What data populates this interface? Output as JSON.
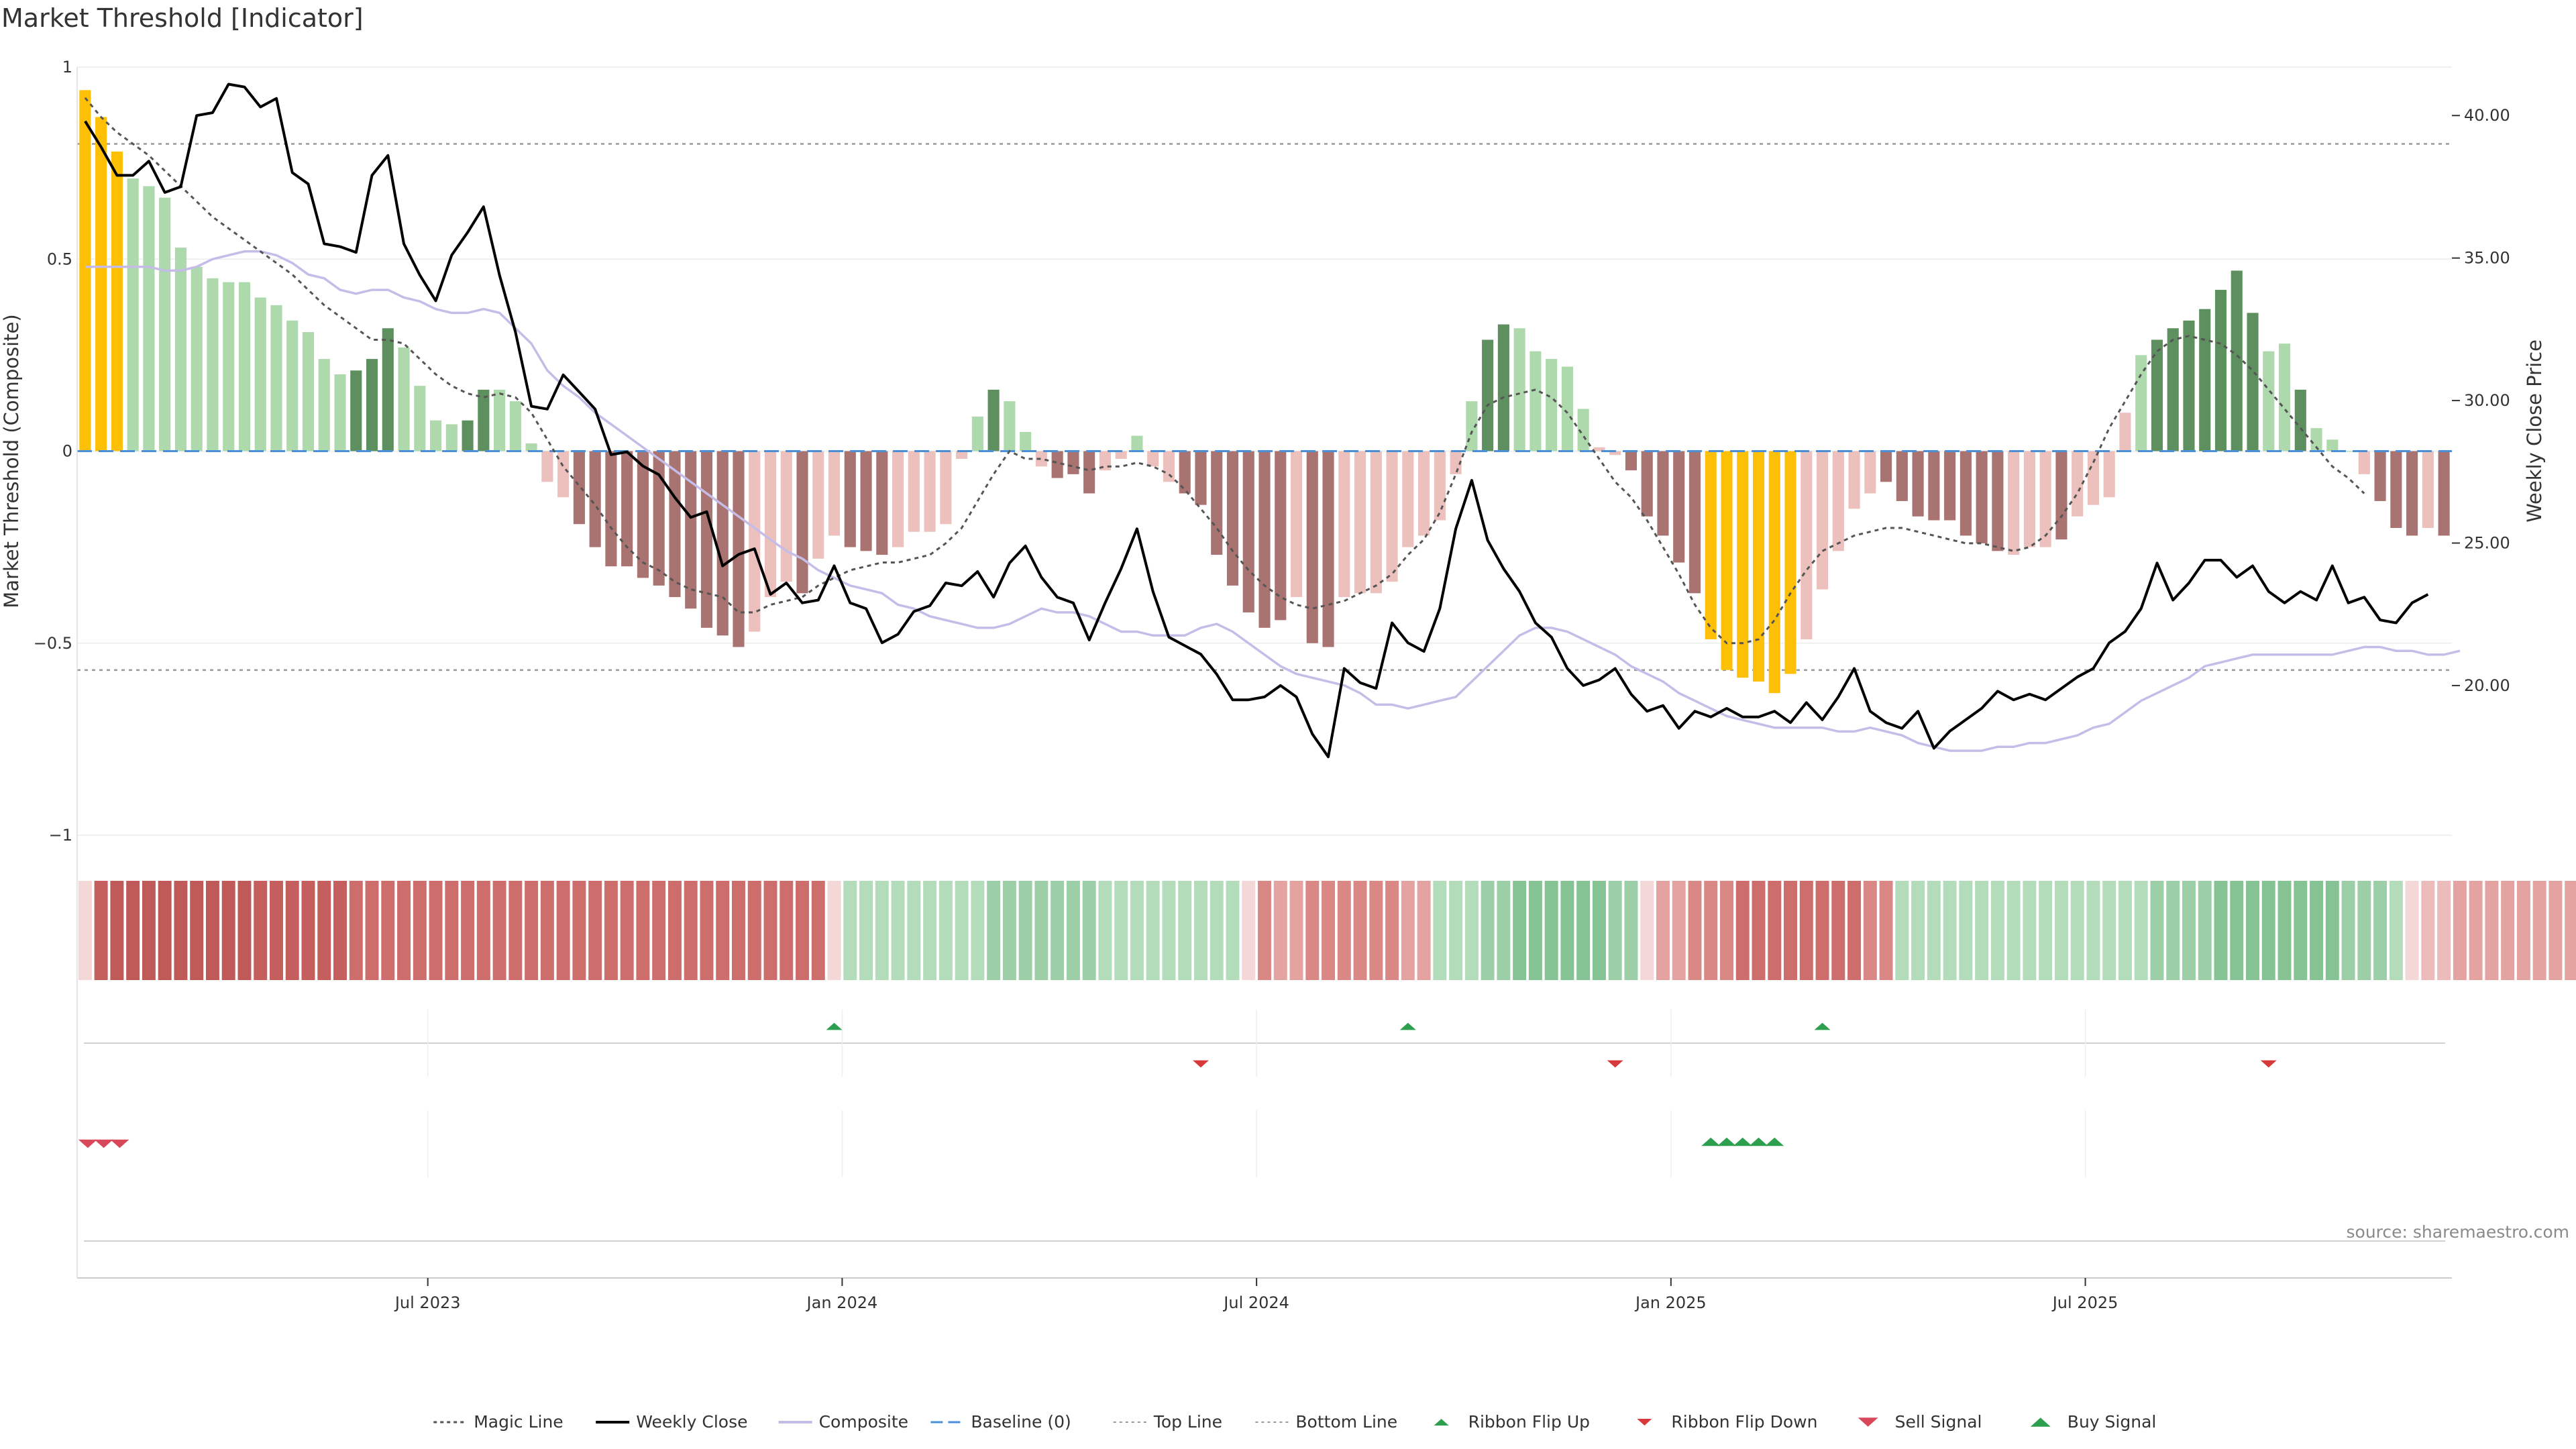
{
  "chart_data": {
    "type": "bar",
    "title": "Market Threshold [Indicator]",
    "ylabel": "Market Threshold (Composite)",
    "y2label": "Weekly Close Price",
    "source": "source: sharemaestro.com",
    "ylim": [
      -1,
      1
    ],
    "y2lim": [
      14.75,
      41.7
    ],
    "yticks": [
      1,
      0.5,
      0,
      -0.5,
      -1
    ],
    "ytick_labels": [
      "1",
      "0.5",
      "0",
      "−0.5",
      "−1"
    ],
    "y2ticks": [
      40,
      35,
      30,
      25,
      20
    ],
    "y2tick_labels": [
      "40.00",
      "35.00",
      "30.00",
      "25.00",
      "20.00"
    ],
    "x_ticks": [
      {
        "label": "Jul 2023",
        "index": 22
      },
      {
        "label": "Jan 2024",
        "index": 48
      },
      {
        "label": "Jul 2024",
        "index": 74
      },
      {
        "label": "Jan 2025",
        "index": 100
      },
      {
        "label": "Jul 2025",
        "index": 126
      }
    ],
    "top_line": 0.8,
    "bottom_line": -0.57,
    "colors": {
      "strong_positive": "#5e8f5e",
      "positive": "#add9ad",
      "strong_negative": "#a87370",
      "negative": "#ecc0bc",
      "extreme": "#fec006",
      "weekly_close": "#000000",
      "composite": "#c5bde8",
      "magic": "#555555",
      "baseline": "#4a90d9",
      "threshold_lines": "#999999",
      "ribbon_flip_up": "#2e9e4f",
      "ribbon_flip_down": "#d63a3a",
      "sell_signal": "#d9475a",
      "buy_signal": "#2e9e4f"
    },
    "bar_values": [
      0.94,
      0.87,
      0.78,
      0.71,
      0.69,
      0.66,
      0.53,
      0.48,
      0.45,
      0.44,
      0.44,
      0.4,
      0.38,
      0.34,
      0.31,
      0.24,
      0.2,
      0.21,
      0.24,
      0.32,
      0.27,
      0.17,
      0.08,
      0.07,
      0.08,
      0.16,
      0.16,
      0.13,
      0.02,
      -0.08,
      -0.12,
      -0.19,
      -0.25,
      -0.3,
      -0.3,
      -0.33,
      -0.35,
      -0.38,
      -0.41,
      -0.46,
      -0.48,
      -0.51,
      -0.47,
      -0.38,
      -0.34,
      -0.37,
      -0.28,
      -0.22,
      -0.25,
      -0.26,
      -0.27,
      -0.25,
      -0.21,
      -0.21,
      -0.19,
      -0.02,
      0.09,
      0.16,
      0.13,
      0.05,
      -0.04,
      -0.07,
      -0.06,
      -0.11,
      -0.05,
      -0.02,
      0.04,
      -0.04,
      -0.08,
      -0.11,
      -0.14,
      -0.27,
      -0.35,
      -0.42,
      -0.46,
      -0.44,
      -0.38,
      -0.5,
      -0.51,
      -0.38,
      -0.37,
      -0.37,
      -0.34,
      -0.25,
      -0.22,
      -0.18,
      -0.06,
      0.13,
      0.29,
      0.33,
      0.32,
      0.26,
      0.24,
      0.22,
      0.11,
      0.01,
      -0.01,
      -0.05,
      -0.17,
      -0.22,
      -0.29,
      -0.37,
      -0.49,
      -0.57,
      -0.59,
      -0.6,
      -0.63,
      -0.58,
      -0.49,
      -0.36,
      -0.26,
      -0.15,
      -0.11,
      -0.08,
      -0.13,
      -0.17,
      -0.18,
      -0.18,
      -0.22,
      -0.24,
      -0.26,
      -0.27,
      -0.25,
      -0.25,
      -0.23,
      -0.17,
      -0.14,
      -0.12,
      0.1,
      0.25,
      0.29,
      0.32,
      0.34,
      0.37,
      0.42,
      0.47,
      0.36,
      0.26,
      0.28,
      0.16,
      0.06,
      0.03,
      0.0,
      -0.06,
      -0.13,
      -0.2,
      -0.22,
      -0.2,
      -0.22
    ],
    "bar_colors": [
      "Y",
      "Y",
      "Y",
      "p",
      "p",
      "p",
      "p",
      "p",
      "p",
      "p",
      "p",
      "p",
      "p",
      "p",
      "p",
      "p",
      "p",
      "P",
      "P",
      "P",
      "p",
      "p",
      "p",
      "p",
      "P",
      "P",
      "p",
      "p",
      "p",
      "n",
      "n",
      "N",
      "N",
      "N",
      "N",
      "N",
      "N",
      "N",
      "N",
      "N",
      "N",
      "N",
      "n",
      "n",
      "n",
      "N",
      "n",
      "n",
      "N",
      "N",
      "N",
      "n",
      "n",
      "n",
      "n",
      "n",
      "p",
      "P",
      "p",
      "p",
      "n",
      "N",
      "N",
      "N",
      "n",
      "n",
      "p",
      "n",
      "n",
      "N",
      "N",
      "N",
      "N",
      "N",
      "N",
      "N",
      "n",
      "N",
      "N",
      "n",
      "n",
      "n",
      "n",
      "n",
      "n",
      "n",
      "n",
      "p",
      "P",
      "P",
      "p",
      "p",
      "p",
      "p",
      "p",
      "n",
      "n",
      "N",
      "N",
      "N",
      "N",
      "N",
      "Y",
      "Y",
      "Y",
      "Y",
      "Y",
      "Y",
      "n",
      "n",
      "n",
      "n",
      "n",
      "N",
      "N",
      "N",
      "N",
      "N",
      "N",
      "N",
      "N",
      "n",
      "n",
      "n",
      "N",
      "n",
      "n",
      "n",
      "n",
      "p",
      "P",
      "P",
      "P",
      "P",
      "P",
      "P",
      "P",
      "p",
      "p",
      "P",
      "p",
      "p",
      "p",
      "n",
      "N",
      "N",
      "N",
      "n",
      "N"
    ],
    "weekly_close": [
      39.8,
      38.9,
      37.9,
      37.9,
      38.4,
      37.3,
      37.5,
      40.0,
      40.1,
      41.1,
      41.0,
      40.3,
      40.6,
      38.0,
      37.6,
      35.5,
      35.4,
      35.2,
      37.9,
      38.6,
      35.5,
      34.4,
      33.5,
      35.1,
      35.9,
      36.8,
      34.4,
      32.4,
      29.8,
      29.7,
      30.9,
      30.3,
      29.7,
      28.1,
      28.2,
      27.7,
      27.4,
      26.6,
      25.9,
      26.1,
      24.2,
      24.6,
      24.8,
      23.2,
      23.6,
      22.9,
      23.0,
      24.2,
      22.9,
      22.7,
      21.5,
      21.8,
      22.6,
      22.8,
      23.6,
      23.5,
      24.0,
      23.1,
      24.3,
      24.9,
      23.8,
      23.1,
      22.9,
      21.6,
      22.9,
      24.1,
      25.5,
      23.3,
      21.7,
      21.4,
      21.1,
      20.4,
      19.5,
      19.5,
      19.6,
      20.0,
      19.6,
      18.3,
      17.5,
      20.6,
      20.1,
      19.9,
      22.2,
      21.5,
      21.2,
      22.7,
      25.5,
      27.2,
      25.1,
      24.1,
      23.3,
      22.2,
      21.7,
      20.6,
      20.0,
      20.2,
      20.6,
      19.7,
      19.1,
      19.3,
      18.5,
      19.1,
      18.9,
      19.2,
      18.9,
      18.9,
      19.1,
      18.7,
      19.4,
      18.8,
      19.6,
      20.6,
      19.1,
      18.7,
      18.5,
      19.1,
      17.8,
      18.4,
      18.8,
      19.2,
      19.8,
      19.5,
      19.7,
      19.5,
      19.9,
      20.3,
      20.6,
      21.5,
      21.9,
      22.7,
      24.3,
      23.0,
      23.6,
      24.4,
      24.4,
      23.8,
      24.2,
      23.3,
      22.9,
      23.3,
      23.0,
      24.2,
      22.9,
      23.1,
      22.3,
      22.2,
      22.9,
      23.2
    ],
    "composite": [
      0.48,
      0.48,
      0.48,
      0.48,
      0.48,
      0.47,
      0.47,
      0.48,
      0.5,
      0.51,
      0.52,
      0.52,
      0.51,
      0.49,
      0.46,
      0.45,
      0.42,
      0.41,
      0.42,
      0.42,
      0.4,
      0.39,
      0.37,
      0.36,
      0.36,
      0.37,
      0.36,
      0.32,
      0.28,
      0.21,
      0.17,
      0.14,
      0.1,
      0.07,
      0.04,
      0.01,
      -0.02,
      -0.05,
      -0.08,
      -0.11,
      -0.14,
      -0.17,
      -0.2,
      -0.23,
      -0.26,
      -0.28,
      -0.31,
      -0.33,
      -0.35,
      -0.36,
      -0.37,
      -0.4,
      -0.41,
      -0.43,
      -0.44,
      -0.45,
      -0.46,
      -0.46,
      -0.45,
      -0.43,
      -0.41,
      -0.42,
      -0.42,
      -0.43,
      -0.45,
      -0.47,
      -0.47,
      -0.48,
      -0.48,
      -0.48,
      -0.46,
      -0.45,
      -0.47,
      -0.5,
      -0.53,
      -0.56,
      -0.58,
      -0.59,
      -0.6,
      -0.61,
      -0.63,
      -0.66,
      -0.66,
      -0.67,
      -0.66,
      -0.65,
      -0.64,
      -0.6,
      -0.56,
      -0.52,
      -0.48,
      -0.46,
      -0.46,
      -0.47,
      -0.49,
      -0.51,
      -0.53,
      -0.56,
      -0.58,
      -0.6,
      -0.63,
      -0.65,
      -0.67,
      -0.69,
      -0.7,
      -0.71,
      -0.72,
      -0.72,
      -0.72,
      -0.72,
      -0.73,
      -0.73,
      -0.72,
      -0.73,
      -0.74,
      -0.76,
      -0.77,
      -0.78,
      -0.78,
      -0.78,
      -0.77,
      -0.77,
      -0.76,
      -0.76,
      -0.75,
      -0.74,
      -0.72,
      -0.71,
      -0.68,
      -0.65,
      -0.63,
      -0.61,
      -0.59,
      -0.56,
      -0.55,
      -0.54,
      -0.53,
      -0.53,
      -0.53,
      -0.53,
      -0.53,
      -0.53,
      -0.52,
      -0.51,
      -0.51,
      -0.52,
      -0.52,
      -0.53,
      -0.53,
      -0.52
    ],
    "magic_line": [
      0.92,
      0.87,
      0.83,
      0.8,
      0.77,
      0.73,
      0.69,
      0.65,
      0.61,
      0.58,
      0.55,
      0.52,
      0.49,
      0.46,
      0.42,
      0.38,
      0.35,
      0.32,
      0.29,
      0.29,
      0.28,
      0.24,
      0.2,
      0.17,
      0.15,
      0.14,
      0.15,
      0.14,
      0.1,
      0.03,
      -0.04,
      -0.09,
      -0.14,
      -0.2,
      -0.25,
      -0.29,
      -0.31,
      -0.34,
      -0.36,
      -0.37,
      -0.38,
      -0.42,
      -0.42,
      -0.4,
      -0.39,
      -0.38,
      -0.35,
      -0.33,
      -0.31,
      -0.3,
      -0.29,
      -0.29,
      -0.28,
      -0.27,
      -0.24,
      -0.2,
      -0.13,
      -0.06,
      0.0,
      -0.02,
      -0.02,
      -0.03,
      -0.04,
      -0.05,
      -0.04,
      -0.04,
      -0.03,
      -0.04,
      -0.06,
      -0.1,
      -0.15,
      -0.2,
      -0.26,
      -0.31,
      -0.35,
      -0.38,
      -0.4,
      -0.41,
      -0.4,
      -0.39,
      -0.37,
      -0.35,
      -0.32,
      -0.27,
      -0.23,
      -0.16,
      -0.06,
      0.05,
      0.12,
      0.14,
      0.15,
      0.16,
      0.14,
      0.1,
      0.04,
      -0.02,
      -0.08,
      -0.12,
      -0.18,
      -0.25,
      -0.32,
      -0.4,
      -0.46,
      -0.5,
      -0.5,
      -0.49,
      -0.44,
      -0.37,
      -0.31,
      -0.26,
      -0.24,
      -0.22,
      -0.21,
      -0.2,
      -0.2,
      -0.21,
      -0.22,
      -0.23,
      -0.24,
      -0.24,
      -0.25,
      -0.26,
      -0.25,
      -0.22,
      -0.17,
      -0.11,
      -0.03,
      0.06,
      0.13,
      0.2,
      0.26,
      0.29,
      0.3,
      0.29,
      0.28,
      0.25,
      0.21,
      0.16,
      0.11,
      0.06,
      0.01,
      -0.04,
      -0.07,
      -0.11
    ],
    "ribbon": [
      1,
      6,
      7,
      7,
      7,
      7,
      7,
      7,
      7,
      7,
      7,
      6,
      6,
      6,
      6,
      6,
      6,
      5,
      5,
      5,
      5,
      5,
      5,
      5,
      5,
      5,
      5,
      5,
      5,
      5,
      5,
      5,
      5,
      5,
      5,
      5,
      5,
      5,
      5,
      5,
      5,
      5,
      5,
      5,
      5,
      5,
      5,
      1,
      -2,
      -2,
      -2,
      -2,
      -2,
      -2,
      -2,
      -2,
      -2,
      -3,
      -3,
      -3,
      -3,
      -3,
      -3,
      -3,
      -2,
      -2,
      -2,
      -2,
      -2,
      -2,
      -2,
      -2,
      -2,
      1,
      4,
      3,
      3,
      4,
      4,
      4,
      4,
      4,
      4,
      3,
      3,
      -2,
      -2,
      -2,
      -3,
      -3,
      -4,
      -4,
      -4,
      -4,
      -4,
      -4,
      -3,
      -3,
      1,
      3,
      3,
      4,
      4,
      4,
      5,
      5,
      5,
      5,
      5,
      5,
      5,
      5,
      4,
      4,
      -2,
      -2,
      -2,
      -2,
      -2,
      -2,
      -2,
      -2,
      -2,
      -2,
      -2,
      -2,
      -2,
      -2,
      -2,
      -2,
      -3,
      -3,
      -3,
      -3,
      -4,
      -4,
      -4,
      -4,
      -4,
      -4,
      -4,
      -4,
      -3,
      -3,
      -3,
      -2,
      1,
      2,
      2,
      3,
      3,
      3,
      3,
      3,
      3,
      3,
      3
    ],
    "ribbon_flip_up": [
      47,
      83,
      109
    ],
    "ribbon_flip_down": [
      70,
      96,
      137
    ],
    "sell_signals": [
      0,
      1,
      2
    ],
    "buy_signals": [
      102,
      103,
      104,
      105,
      106
    ],
    "legend": [
      {
        "label": "Magic Line",
        "kind": "dotted"
      },
      {
        "label": "Weekly Close",
        "kind": "solid"
      },
      {
        "label": "Composite",
        "kind": "composite"
      },
      {
        "label": "Baseline (0)",
        "kind": "dashed"
      },
      {
        "label": "Top Line",
        "kind": "thin-dotted"
      },
      {
        "label": "Bottom Line",
        "kind": "thin-dotted"
      },
      {
        "label": "Ribbon Flip Up",
        "kind": "tri-up-small"
      },
      {
        "label": "Ribbon Flip Down",
        "kind": "tri-down-small"
      },
      {
        "label": "Sell Signal",
        "kind": "tri-down-big"
      },
      {
        "label": "Buy Signal",
        "kind": "tri-up-big"
      }
    ]
  }
}
